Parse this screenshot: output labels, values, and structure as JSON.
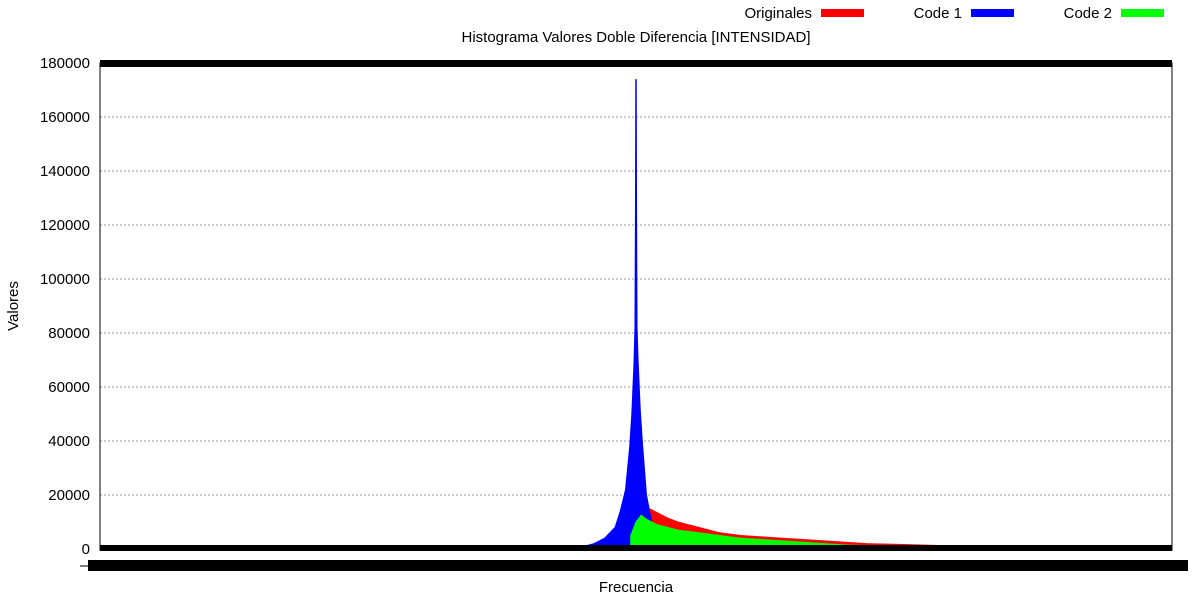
{
  "chart_data": {
    "type": "bar",
    "title": "Histograma Valores Doble Diferencia [INTENSIDAD]",
    "xlabel": "Frecuencia",
    "ylabel": "Valores",
    "ylim": [
      0,
      180000
    ],
    "y_ticks": [
      "0",
      "20000",
      "40000",
      "60000",
      "80000",
      "100000",
      "120000",
      "140000",
      "160000",
      "180000"
    ],
    "xlim": [
      -512,
      512
    ],
    "grid": "horizontal dotted",
    "legend_position": "top-right",
    "series": [
      {
        "name": "Originales",
        "color": "#ff0000",
        "x": [
          -80,
          -70,
          -60,
          -50,
          -40,
          -30,
          -20,
          -10,
          -5,
          0,
          5,
          10,
          20,
          30,
          40,
          50,
          60,
          70,
          80,
          100,
          120,
          140,
          160,
          180,
          200,
          220,
          240,
          260,
          280,
          300,
          320,
          340,
          360,
          380,
          400,
          420,
          440,
          460
        ],
        "values": [
          100,
          200,
          400,
          800,
          1500,
          2800,
          5000,
          9000,
          13000,
          18500,
          17000,
          15500,
          13500,
          11500,
          10000,
          9000,
          8000,
          7000,
          6000,
          5000,
          4500,
          4000,
          3500,
          3000,
          2500,
          2000,
          1800,
          1600,
          1400,
          1200,
          1000,
          900,
          800,
          700,
          600,
          500,
          400,
          300
        ]
      },
      {
        "name": "Code 1",
        "color": "#0000ff",
        "x": [
          -80,
          -70,
          -60,
          -50,
          -40,
          -30,
          -20,
          -15,
          -10,
          -6,
          -4,
          -2,
          -1,
          0,
          1,
          2,
          4,
          6,
          10,
          20,
          30
        ],
        "values": [
          100,
          300,
          600,
          1000,
          2000,
          4000,
          8000,
          14000,
          22000,
          38000,
          50000,
          68000,
          82000,
          174000,
          82000,
          70000,
          52000,
          40000,
          20000,
          0,
          0
        ]
      },
      {
        "name": "Code 2",
        "color": "#00ff00",
        "x": [
          -5,
          0,
          5,
          10,
          20,
          30,
          40,
          60,
          80,
          100,
          120,
          140,
          160,
          180,
          200,
          240,
          280,
          320,
          360,
          400,
          420
        ],
        "values": [
          5000,
          10000,
          12500,
          11000,
          9000,
          8000,
          7000,
          6000,
          5000,
          4000,
          3500,
          3000,
          2500,
          2000,
          1500,
          1000,
          700,
          500,
          300,
          100,
          0
        ]
      }
    ]
  }
}
